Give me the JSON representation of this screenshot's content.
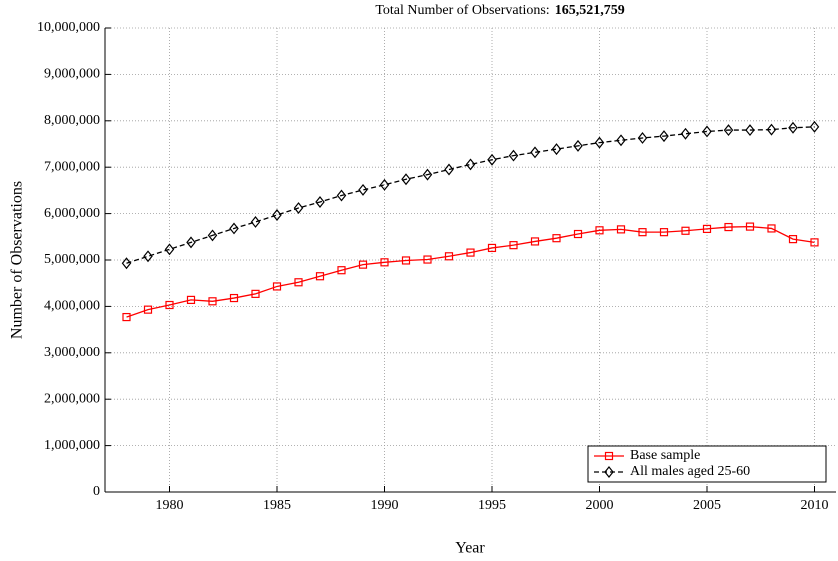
{
  "chart_data": {
    "type": "line",
    "title": "Total Number of Observations:",
    "title_number": "165,521,759",
    "xlabel": "Year",
    "ylabel": "Number of Observations",
    "x": [
      1978,
      1979,
      1980,
      1981,
      1982,
      1983,
      1984,
      1985,
      1986,
      1987,
      1988,
      1989,
      1990,
      1991,
      1992,
      1993,
      1994,
      1995,
      1996,
      1997,
      1998,
      1999,
      2000,
      2001,
      2002,
      2003,
      2004,
      2005,
      2006,
      2007,
      2008,
      2009,
      2010
    ],
    "series": [
      {
        "name": "Base sample",
        "color": "#ff0000",
        "marker": "square",
        "dash": false,
        "values": [
          3770000,
          3930000,
          4030000,
          4140000,
          4110000,
          4180000,
          4270000,
          4430000,
          4520000,
          4650000,
          4780000,
          4900000,
          4950000,
          4990000,
          5010000,
          5080000,
          5160000,
          5260000,
          5320000,
          5400000,
          5470000,
          5560000,
          5640000,
          5660000,
          5600000,
          5600000,
          5630000,
          5670000,
          5710000,
          5720000,
          5680000,
          5450000,
          5380000
        ]
      },
      {
        "name": "All males aged 25-60",
        "color": "#000000",
        "marker": "diamond",
        "dash": true,
        "values": [
          4930000,
          5080000,
          5230000,
          5380000,
          5530000,
          5680000,
          5820000,
          5970000,
          6120000,
          6250000,
          6390000,
          6510000,
          6620000,
          6740000,
          6840000,
          6950000,
          7060000,
          7160000,
          7250000,
          7320000,
          7390000,
          7460000,
          7530000,
          7580000,
          7630000,
          7670000,
          7720000,
          7770000,
          7800000,
          7800000,
          7810000,
          7850000,
          7870000
        ]
      }
    ],
    "xlim": [
      1977,
      2011
    ],
    "xticks": [
      1980,
      1985,
      1990,
      1995,
      2000,
      2005,
      2010
    ],
    "ylim": [
      0,
      10000000
    ],
    "yticks": [
      0,
      {
        "value": 1000000,
        "label": "1,000,000"
      },
      {
        "value": 2000000,
        "label": "2,000,000"
      },
      {
        "value": 3000000,
        "label": "3,000,000"
      },
      {
        "value": 4000000,
        "label": "4,000,000"
      },
      {
        "value": 5000000,
        "label": "5,000,000"
      },
      {
        "value": 6000000,
        "label": "6,000,000"
      },
      {
        "value": 7000000,
        "label": "7,000,000"
      },
      {
        "value": 8000000,
        "label": "8,000,000"
      },
      {
        "value": 9000000,
        "label": "9,000,000"
      },
      {
        "value": 10000000,
        "label": "10,000,000"
      }
    ],
    "grid": true,
    "legend": "lower right"
  }
}
